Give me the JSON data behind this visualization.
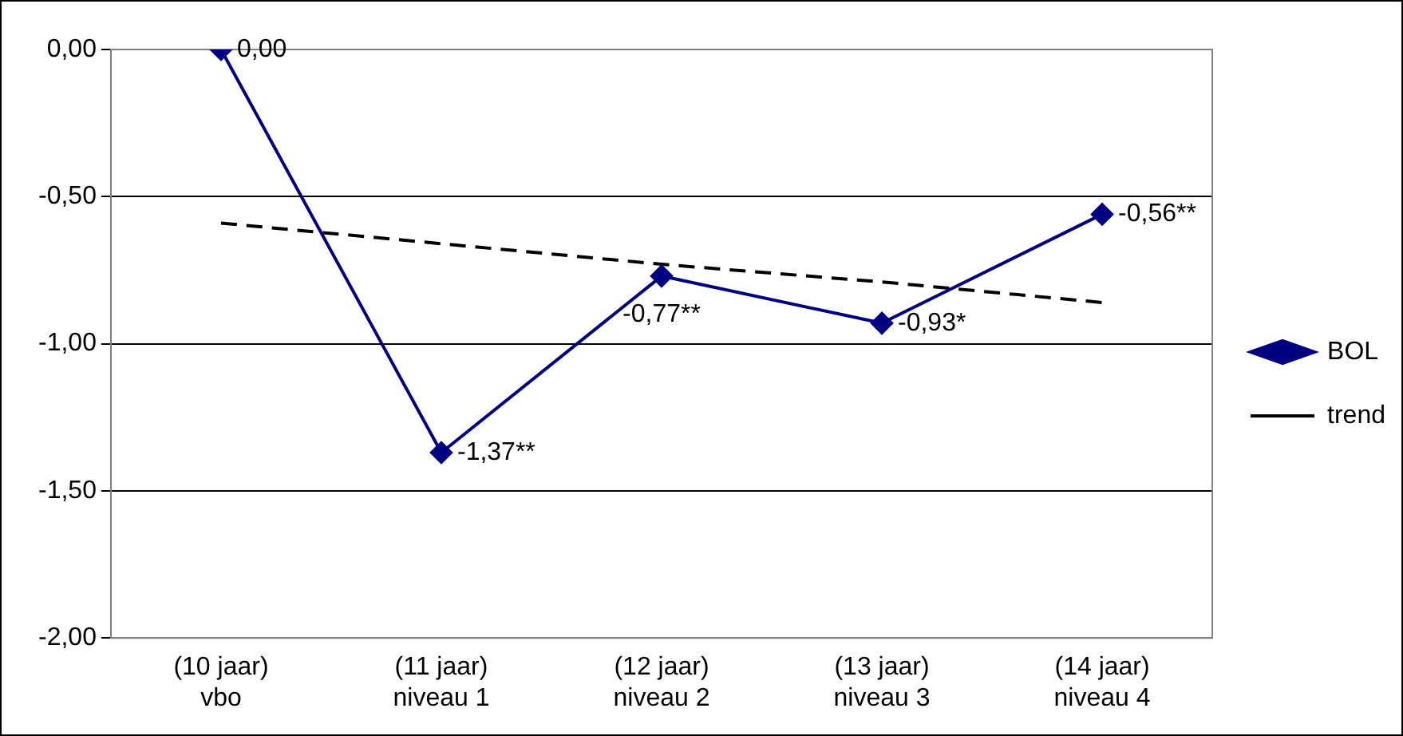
{
  "chart_data": {
    "type": "line",
    "categories": [
      "(10 jaar)\nvbo",
      "(11 jaar)\nniveau 1",
      "(12 jaar)\nniveau 2",
      "(13 jaar)\nniveau 3",
      "(14 jaar)\nniveau 4"
    ],
    "series": [
      {
        "name": "BOL",
        "color": "#000080",
        "values": [
          0,
          -1.37,
          -0.77,
          -0.93,
          -0.56
        ],
        "value_labels": [
          "0,00",
          "-1,37**",
          "-0,77**",
          "-0,93*",
          "-0,56**"
        ],
        "marker": "diamond",
        "line_style": "solid"
      },
      {
        "name": "trend",
        "color": "#000000",
        "values": [
          -0.59,
          -0.66,
          -0.73,
          -0.79,
          -0.86
        ],
        "marker": "none",
        "line_style": "dashed"
      }
    ],
    "ylim": [
      -2,
      0
    ],
    "yticks": [
      {
        "value": -2,
        "label": "-2,00"
      },
      {
        "value": -1.5,
        "label": "-1,50"
      },
      {
        "value": -1,
        "label": "-1,00"
      },
      {
        "value": -0.5,
        "label": "-0,50"
      },
      {
        "value": 0,
        "label": "0,00"
      }
    ],
    "grid": "y",
    "legend": "right"
  }
}
